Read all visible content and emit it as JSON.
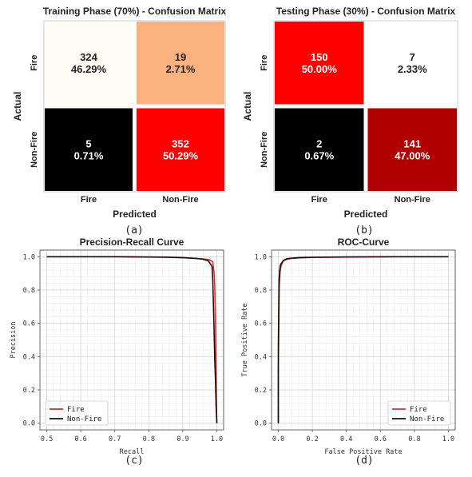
{
  "chart_data": [
    {
      "type": "heatmap",
      "title": "Training Phase (70%) - Confusion Matrix",
      "xlabel": "Predicted",
      "ylabel": "Actual",
      "x_categories": [
        "Fire",
        "Non-Fire"
      ],
      "y_categories": [
        "Fire",
        "Non-Fire"
      ],
      "cells": [
        [
          {
            "count": "324",
            "pct": "46.29%",
            "color": "#fffcf4",
            "text_color": "#222222"
          },
          {
            "count": "19",
            "pct": "2.71%",
            "color": "#fbb27f",
            "text_color": "#222222"
          }
        ],
        [
          {
            "count": "5",
            "pct": "0.71%",
            "color": "#000000",
            "text_color": "#ffffff"
          },
          {
            "count": "352",
            "pct": "50.29%",
            "color": "#ff0000",
            "text_color": "#ffffff"
          }
        ]
      ],
      "caption": "(a)"
    },
    {
      "type": "heatmap",
      "title": "Testing Phase (30%) - Confusion Matrix",
      "xlabel": "Predicted",
      "ylabel": "Actual",
      "x_categories": [
        "Fire",
        "Non-Fire"
      ],
      "y_categories": [
        "Fire",
        "Non-Fire"
      ],
      "cells": [
        [
          {
            "count": "150",
            "pct": "50.00%",
            "color": "#ff0000",
            "text_color": "#ffffff"
          },
          {
            "count": "7",
            "pct": "2.33%",
            "color": "#ffffff",
            "text_color": "#222222"
          }
        ],
        [
          {
            "count": "2",
            "pct": "0.67%",
            "color": "#000000",
            "text_color": "#ffffff"
          },
          {
            "count": "141",
            "pct": "47.00%",
            "color": "#b00000",
            "text_color": "#ffffff"
          }
        ]
      ],
      "caption": "(b)"
    },
    {
      "type": "line",
      "title": "Precision-Recall Curve",
      "xlabel": "Recall",
      "ylabel": "Precision",
      "xlim": [
        0.48,
        1.02
      ],
      "ylim": [
        -0.04,
        1.04
      ],
      "xticks": [
        "0.5",
        "0.6",
        "0.7",
        "0.8",
        "0.9",
        "1.0"
      ],
      "yticks": [
        "0.0",
        "0.2",
        "0.4",
        "0.6",
        "0.8",
        "1.0"
      ],
      "grid": true,
      "legend": "bottom-left",
      "series": [
        {
          "name": "Fire",
          "color": "#e8262a",
          "x": [
            0.5,
            0.7,
            0.85,
            0.92,
            0.96,
            0.978,
            0.988,
            0.992,
            0.994,
            0.996,
            0.997,
            0.998,
            0.999,
            1.0
          ],
          "y": [
            1.0,
            1.0,
            0.997,
            0.992,
            0.987,
            0.982,
            0.97,
            0.9,
            0.82,
            0.62,
            0.45,
            0.3,
            0.1,
            0.0
          ]
        },
        {
          "name": "Non-Fire",
          "color": "#111111",
          "x": [
            0.5,
            0.7,
            0.85,
            0.9,
            0.94,
            0.96,
            0.975,
            0.982,
            0.986,
            0.988,
            0.99,
            0.992,
            0.994,
            0.996,
            0.998,
            1.0
          ],
          "y": [
            1.0,
            1.0,
            0.998,
            0.995,
            0.99,
            0.985,
            0.975,
            0.955,
            0.94,
            0.86,
            0.72,
            0.55,
            0.38,
            0.26,
            0.1,
            0.0
          ]
        }
      ],
      "caption": "(c)"
    },
    {
      "type": "line",
      "title": "ROC-Curve",
      "xlabel": "False Positive Rate",
      "ylabel": "True Positive Rate",
      "xlim": [
        -0.04,
        1.04
      ],
      "ylim": [
        -0.04,
        1.04
      ],
      "xticks": [
        "0.0",
        "0.2",
        "0.4",
        "0.6",
        "0.8",
        "1.0"
      ],
      "yticks": [
        "0.0",
        "0.2",
        "0.4",
        "0.6",
        "0.8",
        "1.0"
      ],
      "grid": true,
      "legend": "bottom-right",
      "series": [
        {
          "name": "Fire",
          "color": "#e8262a",
          "x": [
            0.0,
            0.0,
            0.005,
            0.01,
            0.015,
            0.02,
            0.03,
            0.05,
            0.08,
            0.12,
            0.2,
            0.4,
            0.7,
            1.0
          ],
          "y": [
            0.0,
            0.3,
            0.82,
            0.9,
            0.94,
            0.955,
            0.975,
            0.985,
            0.99,
            0.993,
            0.996,
            0.998,
            1.0,
            1.0
          ]
        },
        {
          "name": "Non-Fire",
          "color": "#111111",
          "x": [
            0.0,
            0.0,
            0.004,
            0.008,
            0.012,
            0.02,
            0.03,
            0.05,
            0.08,
            0.12,
            0.2,
            0.4,
            0.7,
            1.0
          ],
          "y": [
            0.0,
            0.45,
            0.86,
            0.92,
            0.95,
            0.965,
            0.978,
            0.988,
            0.992,
            0.995,
            0.997,
            0.999,
            1.0,
            1.0
          ]
        }
      ],
      "caption": "(d)"
    }
  ]
}
